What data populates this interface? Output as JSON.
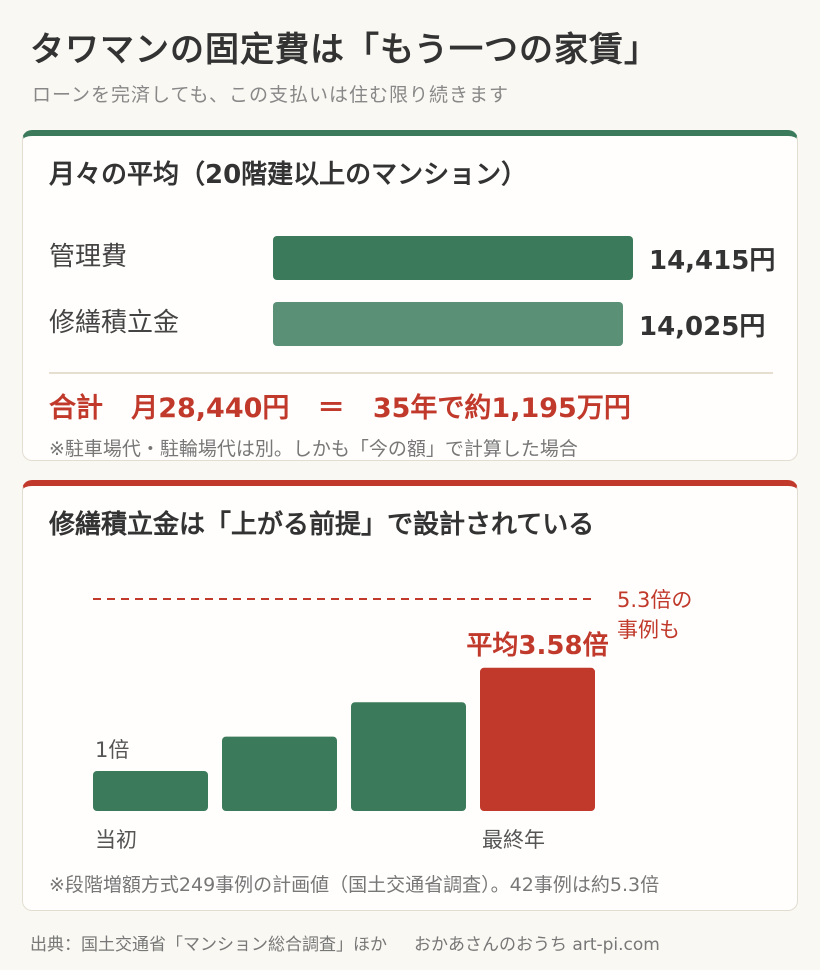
{
  "header": {
    "title": "タワマンの固定費は「もう一つの家賃」",
    "subtitle": "ローンを完済しても、この支払いは住む限り続きます"
  },
  "monthly": {
    "title": "月々の平均（20階建以上のマンション）",
    "rows": [
      {
        "label": "管理費",
        "value": 14415,
        "value_text": "14,415円",
        "color": "#3b7a5a"
      },
      {
        "label": "修繕積立金",
        "value": 14025,
        "value_text": "14,025円",
        "color": "#5a9075"
      }
    ],
    "total_label": "合計",
    "total_monthly": "月28,440円",
    "total_equals": "＝",
    "total_35y": "35年で約1,195万円",
    "note": "※駐車場代・駐輪場代は別。しかも「今の額」で計算した場合"
  },
  "repair": {
    "title": "修繕積立金は「上がる前提」で設計されている",
    "note": "※段階増額方式249事例の計画値（国土交通省調査）。42事例は約5.3倍"
  },
  "chart_data": {
    "type": "bar",
    "values": [
      1,
      1.86,
      2.72,
      3.58
    ],
    "category_labels": [
      "当初",
      "",
      "",
      "最終年"
    ],
    "data_labels": [
      "1倍",
      "",
      "",
      "平均3.58倍"
    ],
    "colors": [
      "#3b7a5a",
      "#3b7a5a",
      "#3b7a5a",
      "#c0392b"
    ],
    "reference_line": {
      "value": 5.3,
      "label_lines": [
        "5.3倍の",
        "事例も"
      ],
      "color": "#c0392b",
      "style": "dashed"
    },
    "grid": false
  },
  "footer": {
    "source": "出典：国土交通省「マンション総合調査」ほか",
    "credit": "おかあさんのおうち art-pi.com"
  }
}
